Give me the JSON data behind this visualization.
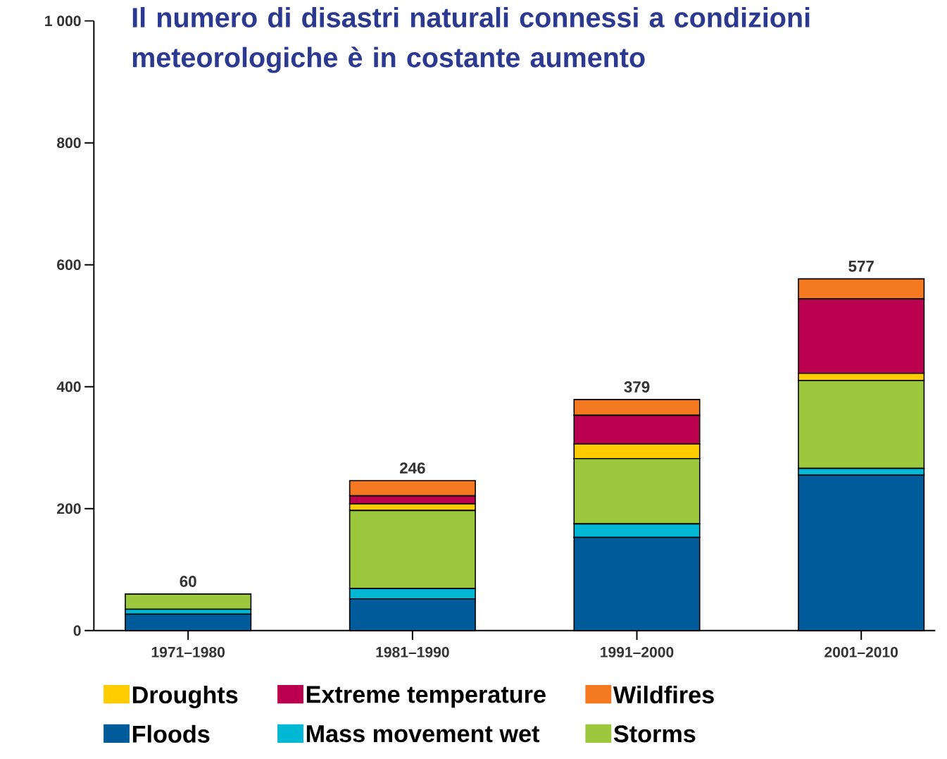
{
  "chart_data": {
    "type": "bar",
    "title": "Il numero di disastri naturali connessi a condizioni meteorologiche è in costante aumento",
    "categories": [
      "1971–1980",
      "1981–1990",
      "1991–2000",
      "2001–2010"
    ],
    "stacked": true,
    "series": [
      {
        "name": "Floods",
        "color": "#005b9a",
        "values": [
          27,
          52,
          153,
          255
        ]
      },
      {
        "name": "Mass movement wet",
        "color": "#00b8d4",
        "values": [
          8,
          17,
          22,
          11
        ]
      },
      {
        "name": "Storms",
        "color": "#9bc83c",
        "values": [
          25,
          128,
          107,
          144
        ]
      },
      {
        "name": "Droughts",
        "color": "#ffcc00",
        "values": [
          0,
          11,
          24,
          12
        ]
      },
      {
        "name": "Extreme temperature",
        "color": "#bb0050",
        "values": [
          0,
          13,
          47,
          122
        ]
      },
      {
        "name": "Wildfires",
        "color": "#f47920",
        "values": [
          0,
          25,
          26,
          33
        ]
      }
    ],
    "totals": [
      "60",
      "246",
      "379",
      "577"
    ],
    "ylim": [
      0,
      1000
    ],
    "yticks": [
      0,
      200,
      400,
      600,
      800,
      {
        "value": 1000,
        "label": "1 000"
      }
    ],
    "legend": "bottom"
  }
}
